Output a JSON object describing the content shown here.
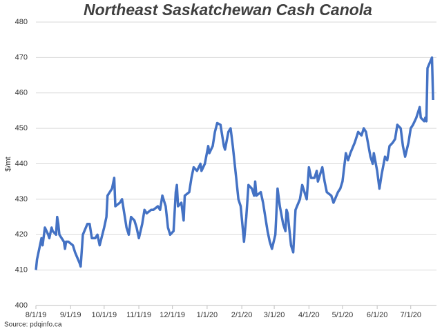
{
  "chart_data": {
    "type": "line",
    "title": "Northeast Saskatchewan Cash Canola",
    "y_label": "$/mt",
    "source": "Source: pdqinfo.ca",
    "x": [
      "8/1/19",
      "8/2/19",
      "8/6/19",
      "8/7/19",
      "8/9/19",
      "8/12/19",
      "8/13/19",
      "8/15/19",
      "8/16/19",
      "8/19/19",
      "8/20/19",
      "8/21/19",
      "8/22/19",
      "8/26/19",
      "8/27/19",
      "8/28/19",
      "8/30/19",
      "9/3/19",
      "9/5/19",
      "9/9/19",
      "9/10/19",
      "9/12/19",
      "9/16/19",
      "9/18/19",
      "9/20/19",
      "9/23/19",
      "9/25/19",
      "9/27/19",
      "10/1/19",
      "10/3/19",
      "10/4/19",
      "10/8/19",
      "10/10/19",
      "10/11/19",
      "10/15/19",
      "10/17/19",
      "10/21/19",
      "10/23/19",
      "10/25/19",
      "10/28/19",
      "10/30/19",
      "11/1/19",
      "11/4/19",
      "11/6/19",
      "11/8/19",
      "11/12/19",
      "11/14/19",
      "11/18/19",
      "11/20/19",
      "11/22/19",
      "11/25/19",
      "11/27/19",
      "11/29/19",
      "12/2/19",
      "12/4/19",
      "12/5/19",
      "12/6/19",
      "12/9/19",
      "12/11/19",
      "12/12/19",
      "12/16/19",
      "12/18/19",
      "12/20/19",
      "12/23/19",
      "12/26/19",
      "12/27/19",
      "12/30/19",
      "1/2/20",
      "1/3/20",
      "1/6/20",
      "1/8/20",
      "1/10/20",
      "1/13/20",
      "1/14/20",
      "1/16/20",
      "1/17/20",
      "1/20/20",
      "1/22/20",
      "1/24/20",
      "1/27/20",
      "1/29/20",
      "1/31/20",
      "2/3/20",
      "2/5/20",
      "2/7/20",
      "2/10/20",
      "2/12/20",
      "2/13/20",
      "2/14/20",
      "2/18/20",
      "2/20/20",
      "2/24/20",
      "2/26/20",
      "2/28/20",
      "3/2/20",
      "3/4/20",
      "3/6/20",
      "3/9/20",
      "3/11/20",
      "3/12/20",
      "3/13/20",
      "3/16/20",
      "3/18/20",
      "3/20/20",
      "3/24/20",
      "3/26/20",
      "3/30/20",
      "4/1/20",
      "4/3/20",
      "4/6/20",
      "4/8/20",
      "4/9/20",
      "4/13/20",
      "4/15/20",
      "4/17/20",
      "4/21/20",
      "4/23/20",
      "4/27/20",
      "4/29/20",
      "5/1/20",
      "5/4/20",
      "5/6/20",
      "5/8/20",
      "5/12/20",
      "5/14/20",
      "5/15/20",
      "5/18/20",
      "5/20/20",
      "5/22/20",
      "5/26/20",
      "5/28/20",
      "5/29/20",
      "6/1/20",
      "6/3/20",
      "6/5/20",
      "6/8/20",
      "6/10/20",
      "6/12/20",
      "6/15/20",
      "6/17/20",
      "6/19/20",
      "6/22/20",
      "6/24/20",
      "6/26/20",
      "6/29/20",
      "7/1/20",
      "7/3/20",
      "7/6/20",
      "7/8/20",
      "7/9/20",
      "7/10/20",
      "7/13/20",
      "7/14/20",
      "7/15/20",
      "7/16/20",
      "7/20/20",
      "7/21/20"
    ],
    "series": [
      {
        "name": "Northeast Saskatchewan Cash Canola",
        "color": "#4472c4",
        "values": [
          410,
          413,
          419,
          417,
          422,
          420,
          419,
          422,
          421,
          420,
          425,
          423,
          420,
          418,
          416,
          418,
          418,
          417,
          415,
          412,
          411,
          420,
          423,
          423,
          419,
          419,
          420,
          417,
          422,
          425,
          431,
          433,
          436,
          428,
          429,
          430,
          422,
          420,
          425,
          424,
          422,
          419,
          423,
          427,
          426,
          427,
          427,
          428,
          427,
          431,
          428,
          422,
          420,
          421,
          432,
          434,
          428,
          429,
          424,
          431,
          432,
          436,
          439,
          438,
          440,
          438,
          440,
          445,
          443,
          445,
          449,
          451.5,
          451,
          449,
          445,
          444,
          449,
          450,
          445,
          436,
          430,
          428,
          418,
          425,
          434,
          433,
          431,
          435,
          431,
          432,
          429,
          421,
          418,
          416,
          420,
          433,
          428,
          423,
          421,
          427,
          426,
          417,
          415,
          427,
          430,
          434,
          430,
          439,
          436,
          436,
          438,
          435,
          439,
          435,
          432,
          431,
          429,
          432,
          433,
          435,
          443,
          441,
          443,
          446,
          448,
          449,
          448,
          450,
          449,
          442,
          440,
          443,
          438,
          433,
          437,
          442,
          441,
          445,
          446,
          447,
          451,
          450,
          445,
          442,
          446,
          450,
          451,
          453,
          455,
          456,
          453,
          452,
          453,
          452,
          467,
          470,
          458
        ]
      }
    ],
    "xlim": [
      "8/1/19",
      "7/24/20"
    ],
    "xticks": [
      "8/1/19",
      "9/1/19",
      "10/1/19",
      "11/1/19",
      "12/1/19",
      "1/1/20",
      "2/1/20",
      "3/1/20",
      "4/1/20",
      "5/1/20",
      "6/1/20",
      "7/1/20"
    ],
    "ylim": [
      400,
      480
    ],
    "yticks": [
      400,
      410,
      420,
      430,
      440,
      450,
      460,
      470,
      480
    ],
    "grid": true
  }
}
